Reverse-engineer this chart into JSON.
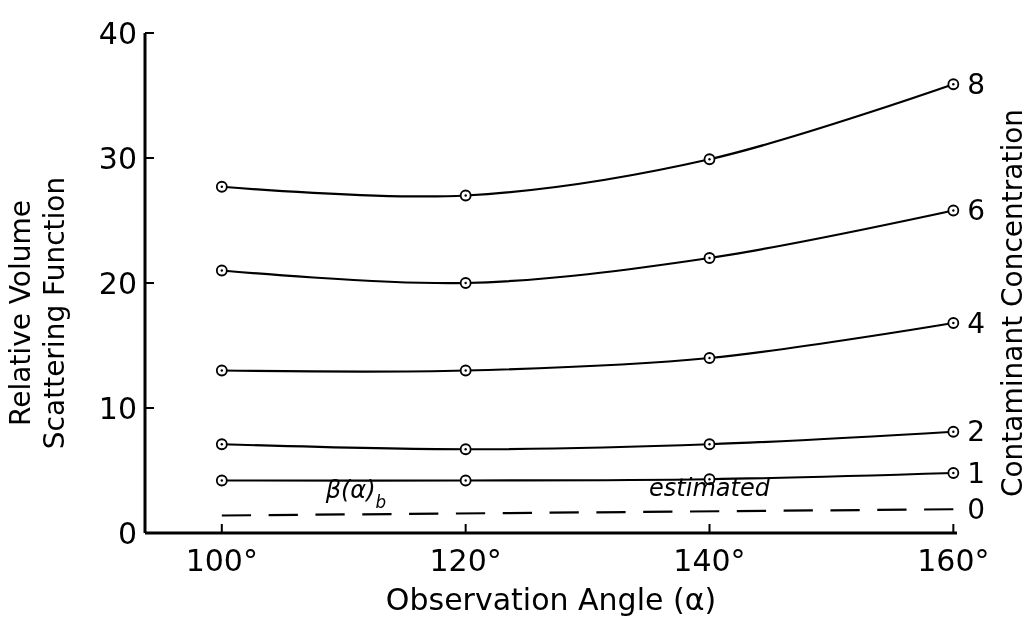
{
  "chart_data": {
    "type": "line",
    "xlabel": "Observation Angle (α)",
    "ylabel": "Relative Volume\nScattering Function",
    "y2label": "Contaminant Concentration",
    "x": [
      100,
      120,
      140,
      160
    ],
    "series": [
      {
        "name": "8",
        "color": "#000000",
        "values": [
          27.7,
          27.0,
          29.9,
          35.9
        ]
      },
      {
        "name": "6",
        "color": "#000000",
        "values": [
          21.0,
          20.0,
          22.0,
          25.8
        ]
      },
      {
        "name": "4",
        "color": "#000000",
        "values": [
          13.0,
          13.0,
          14.0,
          16.8
        ]
      },
      {
        "name": "2",
        "color": "#000000",
        "values": [
          7.1,
          6.7,
          7.1,
          8.1
        ]
      },
      {
        "name": "1",
        "color": "#000000",
        "values": [
          4.2,
          4.2,
          4.3,
          4.8
        ]
      },
      {
        "name": "0",
        "color": "#000000",
        "x": [
          100,
          160
        ],
        "values": [
          1.4,
          1.9
        ],
        "line_style": "dashed",
        "marker": "none"
      }
    ],
    "marker": "circle",
    "line_style": "solid",
    "xlim": [
      93.7,
      160.3
    ],
    "xticks": [
      {
        "value": 100,
        "label": "100°"
      },
      {
        "value": 120,
        "label": "120°"
      },
      {
        "value": 140,
        "label": "140°"
      },
      {
        "value": 160,
        "label": "160°"
      }
    ],
    "ylim": [
      0,
      40
    ],
    "yticks": [
      0,
      10,
      20,
      30,
      40
    ],
    "annotations": [
      {
        "text": "β(α)$_{b}$",
        "x": 111,
        "y": 1.5
      },
      {
        "text": "estimated",
        "x": 140,
        "y": 1.7
      }
    ],
    "grid": false
  }
}
